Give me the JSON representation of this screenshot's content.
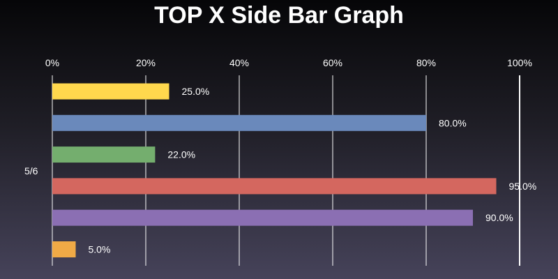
{
  "chart_data": {
    "type": "bar",
    "orientation": "horizontal",
    "title": "TOP X Side Bar Graph",
    "side_label": "5/6",
    "xlim": [
      0,
      100
    ],
    "x_ticks": [
      0,
      20,
      40,
      60,
      80,
      100
    ],
    "x_tick_labels": [
      "0%",
      "20%",
      "40%",
      "60%",
      "80%",
      "100%"
    ],
    "grid": true,
    "values": [
      25.0,
      80.0,
      22.0,
      95.0,
      90.0,
      5.0
    ],
    "value_labels": [
      "25.0%",
      "80.0%",
      "22.0%",
      "95.0%",
      "90.0%",
      "5.0%"
    ],
    "colors": [
      "#ffd84d",
      "#6a89bb",
      "#74ae6e",
      "#d4675f",
      "#8b6fb3",
      "#f0aa46"
    ]
  }
}
